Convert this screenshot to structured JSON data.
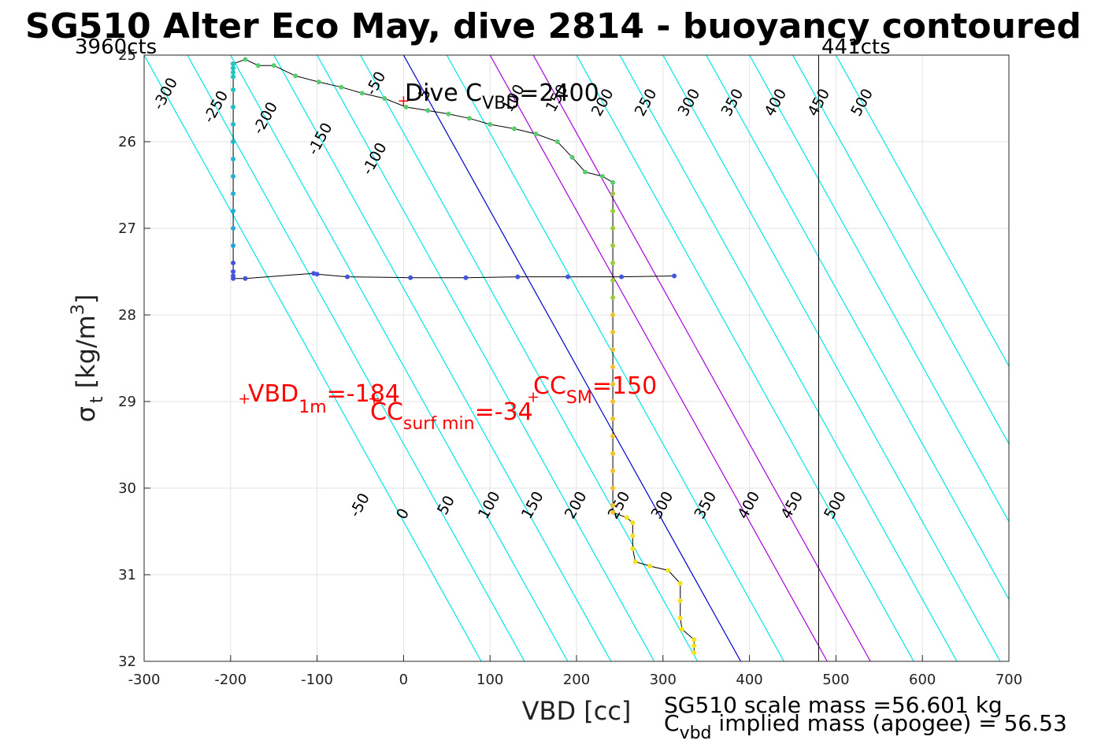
{
  "chart_data": {
    "type": "scatter",
    "title": "SG510 Alter Eco May, dive 2814 - buoyancy contoured",
    "xlabel": "VBD [cc]",
    "ylabel_main": "σ",
    "ylabel_sub": "t",
    "ylabel_unit": "[kg/m",
    "ylabel_sup": "3",
    "ylabel_end": "]",
    "xlim": [
      -300,
      700
    ],
    "ylim": [
      25,
      32
    ],
    "y_reversed": true,
    "grid": true,
    "xticks": [
      "-300",
      "-200",
      "-100",
      "0",
      "100",
      "200",
      "300",
      "400",
      "500",
      "600",
      "700"
    ],
    "yticks": [
      "25",
      "26",
      "27",
      "28",
      "29",
      "30",
      "31",
      "32"
    ],
    "left_limit_label": "3960cts",
    "right_limit_label": "441cts",
    "right_limit_vbd": 480,
    "contour_levels": [
      -300,
      -250,
      -200,
      -150,
      -100,
      -50,
      0,
      50,
      100,
      150,
      200,
      250,
      300,
      350,
      400,
      450,
      500
    ],
    "contour_labels_top": [
      "-300",
      "-250",
      "-200",
      "-150",
      "-100",
      "-50",
      "5",
      "100",
      "150",
      "200",
      "250",
      "300",
      "350",
      "400",
      "450",
      "500"
    ],
    "contour_labels_bottom": [
      "-50",
      "0",
      "50",
      "100",
      "150",
      "200",
      "250",
      "300",
      "350",
      "400",
      "450",
      "500"
    ],
    "contour_colors": {
      "default": "#00e5e5",
      "zero": "#0000cc",
      "highlight": "#aa00dd"
    },
    "highlight_levels": [
      100,
      150
    ],
    "annotations": {
      "dive_c_main": "Dive C",
      "dive_c_sub": "VBD",
      "dive_c_val": "=2400",
      "dive_c_point": [
        0,
        25.53
      ],
      "vbd1m_main": "VBD",
      "vbd1m_sub": "1m",
      "vbd1m_val": "=-184",
      "vbd1m_point": [
        -184,
        28.97
      ],
      "ccsurf_main": "CC",
      "ccsurf_sub": "surf min",
      "ccsurf_val": "=-34",
      "ccsurf_point": [
        -34,
        28.97
      ],
      "ccsm_main": "CC",
      "ccsm_sub": "SM",
      "ccsm_val": "=150",
      "ccsm_point": [
        150,
        28.95
      ]
    },
    "series": [
      {
        "points": [
          [
            -197,
            25.1
          ],
          [
            -183,
            25.05
          ],
          [
            -168,
            25.12
          ],
          [
            -150,
            25.12
          ],
          [
            -125,
            25.24
          ],
          [
            -98,
            25.31
          ],
          [
            -72,
            25.37
          ],
          [
            -48,
            25.44
          ],
          [
            -22,
            25.5
          ],
          [
            3,
            25.6
          ],
          [
            28,
            25.64
          ],
          [
            52,
            25.68
          ],
          [
            76,
            25.73
          ],
          [
            100,
            25.8
          ],
          [
            128,
            25.85
          ],
          [
            153,
            25.91
          ],
          [
            178,
            26.0
          ],
          [
            195,
            26.18
          ],
          [
            210,
            26.35
          ],
          [
            230,
            26.4
          ],
          [
            242,
            26.47
          ],
          [
            242,
            26.6
          ],
          [
            242,
            26.8
          ],
          [
            242,
            27.0
          ],
          [
            242,
            27.2
          ],
          [
            242,
            27.4
          ],
          [
            242,
            27.6
          ],
          [
            242,
            27.8
          ],
          [
            242,
            28.0
          ],
          [
            242,
            28.2
          ],
          [
            242,
            28.4
          ],
          [
            242,
            28.6
          ],
          [
            242,
            28.8
          ],
          [
            242,
            29.0
          ],
          [
            242,
            29.2
          ],
          [
            242,
            29.4
          ],
          [
            242,
            29.6
          ],
          [
            242,
            29.8
          ],
          [
            242,
            30.0
          ],
          [
            242,
            30.2
          ],
          [
            242,
            30.28
          ],
          [
            258,
            30.34
          ],
          [
            265,
            30.4
          ],
          [
            265,
            30.55
          ],
          [
            265,
            30.7
          ],
          [
            268,
            30.85
          ],
          [
            285,
            30.9
          ],
          [
            306,
            30.95
          ],
          [
            320,
            31.1
          ],
          [
            320,
            31.3
          ],
          [
            320,
            31.5
          ],
          [
            322,
            31.63
          ],
          [
            336,
            31.75
          ],
          [
            336,
            31.82
          ],
          [
            336,
            31.9
          ]
        ]
      },
      {
        "points": [
          [
            -197,
            25.1
          ],
          [
            -197,
            25.15
          ],
          [
            -197,
            25.2
          ],
          [
            -197,
            25.25
          ],
          [
            -197,
            25.4
          ],
          [
            -197,
            25.6
          ],
          [
            -197,
            25.8
          ],
          [
            -197,
            26.0
          ],
          [
            -197,
            26.2
          ],
          [
            -197,
            26.4
          ],
          [
            -197,
            26.6
          ],
          [
            -197,
            26.8
          ],
          [
            -197,
            27.0
          ],
          [
            -197,
            27.2
          ],
          [
            -197,
            27.4
          ],
          [
            -197,
            27.5
          ],
          [
            -197,
            27.55
          ],
          [
            -197,
            27.58
          ],
          [
            -183,
            27.58
          ],
          [
            -104,
            27.52
          ],
          [
            -100,
            27.53
          ],
          [
            -65,
            27.56
          ],
          [
            8,
            27.57
          ],
          [
            72,
            27.57
          ],
          [
            132,
            27.56
          ],
          [
            190,
            27.56
          ],
          [
            252,
            27.56
          ],
          [
            313,
            27.55
          ]
        ]
      }
    ]
  },
  "footer": {
    "line1": "SG510 scale mass =56.601 kg",
    "line2_main": "C",
    "line2_sub": "vbd",
    "line2_rest": " implied mass (apogee) = 56.53"
  }
}
